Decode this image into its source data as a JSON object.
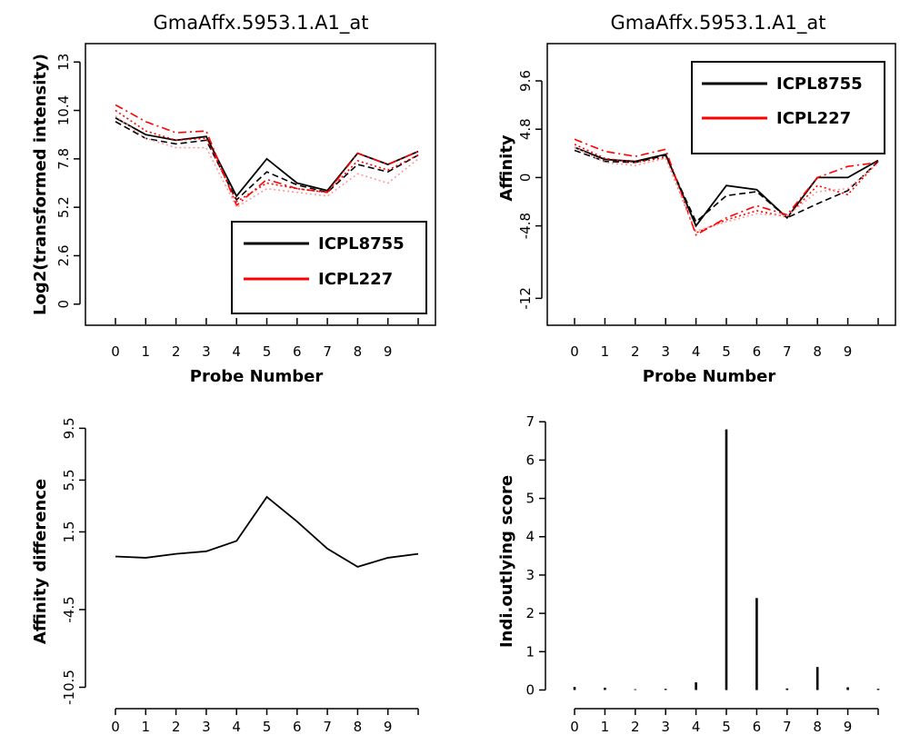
{
  "colors": {
    "series_1": "#000000",
    "series_2": "#ff0000",
    "series_2_light": "#ff9999",
    "axis": "#000000"
  },
  "chart_data": [
    {
      "type": "line",
      "title": "GmaAffx.5953.1.A1_at",
      "xlabel": "Probe Number",
      "ylabel": "Log2(transformed intensity)",
      "x_ticks": [
        "0",
        "1",
        "2",
        "3",
        "4",
        "5",
        "6",
        "7",
        "8",
        "9"
      ],
      "y_ticks": [
        "0",
        "2.6",
        "5.2",
        "7.8",
        "10.4",
        "13"
      ],
      "xlim": [
        -0.3,
        10.3
      ],
      "ylim": [
        -0.5,
        13.5
      ],
      "x": [
        0,
        1,
        2,
        3,
        4,
        5,
        6,
        7,
        8,
        9,
        10
      ],
      "legend_position": "bottom-right",
      "legend": [
        "ICPL8755",
        "ICPL227"
      ],
      "series": [
        {
          "name": "ICPL8755",
          "style": "solid",
          "color": "#000000",
          "values": [
            10.0,
            9.1,
            8.8,
            9.0,
            5.8,
            7.8,
            6.5,
            6.1,
            8.1,
            7.5,
            8.2
          ]
        },
        {
          "style": "dashed",
          "color": "#000000",
          "values": [
            9.8,
            8.9,
            8.6,
            8.8,
            5.6,
            7.1,
            6.4,
            6.0,
            7.5,
            7.1,
            8.0
          ]
        },
        {
          "name": "ICPL227",
          "style": "dashdot",
          "color": "#ff0000",
          "values": [
            10.7,
            9.8,
            9.2,
            9.3,
            5.3,
            6.7,
            6.2,
            6.0,
            8.1,
            7.5,
            8.2
          ]
        },
        {
          "style": "dotted",
          "color": "#ff9999",
          "values": [
            10.1,
            8.9,
            8.4,
            8.4,
            5.2,
            6.2,
            6.0,
            5.8,
            7.0,
            6.5,
            7.8
          ]
        },
        {
          "style": "dotted",
          "color": "#ff0000",
          "values": [
            10.4,
            9.3,
            8.8,
            8.9,
            5.5,
            6.5,
            6.2,
            6.0,
            7.7,
            7.2,
            8.0
          ]
        }
      ]
    },
    {
      "type": "line",
      "title": "GmaAffx.5953.1.A1_at",
      "xlabel": "Probe Number",
      "ylabel": "Affinity",
      "x_ticks": [
        "0",
        "1",
        "2",
        "3",
        "4",
        "5",
        "6",
        "7",
        "8",
        "9"
      ],
      "y_ticks": [
        "-12",
        "-4.8",
        "0",
        "4.8",
        "9.6"
      ],
      "xlim": [
        -0.3,
        10.3
      ],
      "ylim": [
        -13.5,
        12.4
      ],
      "x": [
        0,
        1,
        2,
        3,
        4,
        5,
        6,
        7,
        8,
        9,
        10
      ],
      "legend_position": "top-right",
      "legend": [
        "ICPL8755",
        "ICPL227"
      ],
      "series": [
        {
          "name": "ICPL8755",
          "style": "solid",
          "color": "#000000",
          "values": [
            3.0,
            1.8,
            1.6,
            2.3,
            -4.8,
            -0.8,
            -1.2,
            -4.0,
            0.0,
            0.0,
            1.7
          ]
        },
        {
          "style": "dashed",
          "color": "#000000",
          "values": [
            2.7,
            1.6,
            1.5,
            2.2,
            -4.4,
            -1.8,
            -1.4,
            -4.0,
            -2.6,
            -1.3,
            1.6
          ]
        },
        {
          "name": "ICPL227",
          "style": "dashdot",
          "color": "#ff0000",
          "values": [
            3.8,
            2.6,
            2.1,
            2.8,
            -5.7,
            -4.0,
            -2.8,
            -3.7,
            0.0,
            1.1,
            1.5
          ]
        },
        {
          "style": "dotted",
          "color": "#ff0000",
          "values": [
            3.3,
            1.9,
            1.5,
            2.0,
            -5.5,
            -4.2,
            -3.3,
            -3.9,
            -0.8,
            -1.7,
            1.6
          ]
        },
        {
          "style": "dotted",
          "color": "#ff9999",
          "values": [
            3.0,
            1.5,
            1.2,
            1.9,
            -5.3,
            -4.4,
            -3.6,
            -3.8,
            -1.4,
            -1.1,
            1.4
          ]
        }
      ]
    },
    {
      "type": "line",
      "title": "",
      "xlabel": "",
      "ylabel": "Affinity difference",
      "x_ticks": [
        "0",
        "1",
        "2",
        "3",
        "4",
        "5",
        "6",
        "7",
        "8",
        "9"
      ],
      "y_ticks": [
        "-10.5",
        "-4.5",
        "1.5",
        "5.5",
        "9.5"
      ],
      "xlim": [
        -0.3,
        10.3
      ],
      "ylim": [
        -11.8,
        10.3
      ],
      "x": [
        0,
        1,
        2,
        3,
        4,
        5,
        6,
        7,
        8,
        9,
        10
      ],
      "series": [
        {
          "style": "solid",
          "color": "#000000",
          "values": [
            -0.4,
            -0.5,
            -0.2,
            0.0,
            0.8,
            4.2,
            2.3,
            0.2,
            -1.2,
            -0.5,
            -0.2
          ]
        }
      ]
    },
    {
      "type": "bar",
      "title": "",
      "xlabel": "",
      "ylabel": "Indi.outlying score",
      "x_ticks": [
        "0",
        "1",
        "2",
        "3",
        "4",
        "5",
        "6",
        "7",
        "8",
        "9"
      ],
      "y_ticks": [
        "0",
        "1",
        "2",
        "3",
        "4",
        "5",
        "6",
        "7"
      ],
      "xlim": [
        -0.3,
        10.3
      ],
      "ylim": [
        -0.25,
        7.1
      ],
      "x": [
        0,
        1,
        2,
        3,
        4,
        5,
        6,
        7,
        8,
        9,
        10
      ],
      "values": [
        0.08,
        0.06,
        0.02,
        0.03,
        0.2,
        6.8,
        2.4,
        0.04,
        0.6,
        0.07,
        0.03
      ]
    }
  ]
}
